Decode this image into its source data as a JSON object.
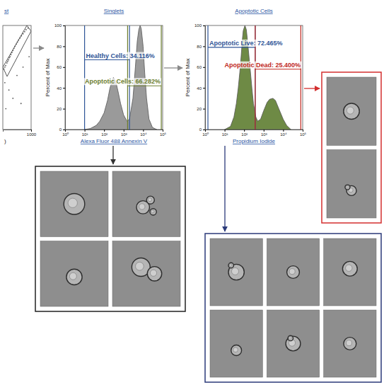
{
  "chart_data": [
    {
      "type": "scatter",
      "title": "st",
      "x_label": ")",
      "xlim": [
        860,
        1000
      ],
      "ylim": [
        0,
        1000
      ],
      "xticks": [
        1000
      ],
      "tick_labels": "x",
      "color": "#555555",
      "x": [
        865,
        870,
        874,
        880,
        884,
        888,
        892,
        896,
        900,
        905,
        910,
        915,
        920,
        926,
        932,
        938,
        945,
        952,
        960,
        968,
        975,
        985,
        870,
        890,
        910,
        930,
        950,
        875,
        960,
        990
      ],
      "y": [
        580,
        600,
        615,
        640,
        655,
        670,
        690,
        700,
        720,
        740,
        760,
        780,
        800,
        820,
        840,
        860,
        880,
        900,
        920,
        940,
        960,
        975,
        450,
        380,
        300,
        520,
        250,
        200,
        600,
        700
      ],
      "gate": {
        "x": [
          860,
          979,
          1000,
          881
        ],
        "y": [
          599,
          1000,
          946,
          510
        ]
      }
    },
    {
      "type": "area",
      "title": "Singlets",
      "x_label": "Alexa Fluor 488 Annexin V",
      "y_label": "Percent of Max",
      "log": "x",
      "xlim": [
        1,
        100000
      ],
      "ylim": [
        0,
        100
      ],
      "xticks": [
        {
          "value": 1,
          "label": "10⁰"
        },
        {
          "value": 10,
          "label": "10¹"
        },
        {
          "value": 100,
          "label": "10²"
        },
        {
          "value": 1000,
          "label": "10³"
        },
        {
          "value": 10000,
          "label": "10⁴"
        },
        {
          "value": 100000,
          "label": "10⁵"
        }
      ],
      "yticks": [
        0,
        20,
        40,
        60,
        80,
        100
      ],
      "color": "#9a9a9a",
      "x": [
        10,
        20,
        40,
        60,
        100,
        150,
        200,
        300,
        400,
        500,
        700,
        1000,
        1500,
        2000,
        3000,
        4000,
        5000,
        6000,
        7000,
        8000,
        10000,
        12000,
        15000,
        20000,
        30000,
        50000
      ],
      "values": [
        0,
        1,
        4,
        8,
        16,
        28,
        40,
        50,
        46,
        38,
        25,
        14,
        8,
        10,
        30,
        60,
        85,
        96,
        100,
        97,
        80,
        55,
        30,
        10,
        2,
        0
      ],
      "gates": [
        {
          "label": "Healthy Cells: 34.116%",
          "x": [
            10,
            2000
          ],
          "y": 67,
          "color": "#2f5597"
        },
        {
          "label": "Apoptotic Cells: 66.282%",
          "x": [
            1600,
            85000
          ],
          "y": 42,
          "color": "#6b7d2e"
        }
      ]
    },
    {
      "type": "area",
      "title": "Apoptotic Cells",
      "x_label": "Propidium Iodide",
      "y_label": "Percent of Max",
      "log": "x",
      "xlim": [
        1,
        100000
      ],
      "ylim": [
        0,
        100
      ],
      "xticks": [
        {
          "value": 1,
          "label": "10⁰"
        },
        {
          "value": 10,
          "label": "10¹"
        },
        {
          "value": 100,
          "label": "10²"
        },
        {
          "value": 1000,
          "label": "10³"
        },
        {
          "value": 10000,
          "label": "10⁴"
        },
        {
          "value": 100000,
          "label": "10⁵"
        }
      ],
      "yticks": [
        0,
        20,
        40,
        60,
        80,
        100
      ],
      "color": "#6e8a45",
      "x": [
        10,
        20,
        30,
        40,
        50,
        60,
        70,
        80,
        90,
        110,
        130,
        150,
        200,
        250,
        300,
        400,
        500,
        700,
        1000,
        1500,
        2000,
        3000,
        4000,
        6000,
        10000,
        15000,
        25000
      ],
      "values": [
        0,
        3,
        12,
        25,
        40,
        55,
        70,
        85,
        95,
        100,
        96,
        85,
        60,
        40,
        25,
        12,
        8,
        10,
        18,
        26,
        29,
        30,
        28,
        20,
        10,
        4,
        0
      ],
      "gates": [
        {
          "label": "Apoptotic Live: 72.465%",
          "x": [
            1.4,
            370
          ],
          "y": 79,
          "color": "#2f5597"
        },
        {
          "label": "Apoptotic Dead: 25.400%",
          "x": [
            370,
            80000
          ],
          "y": 58,
          "color": "#c0271e"
        }
      ]
    }
  ]
}
